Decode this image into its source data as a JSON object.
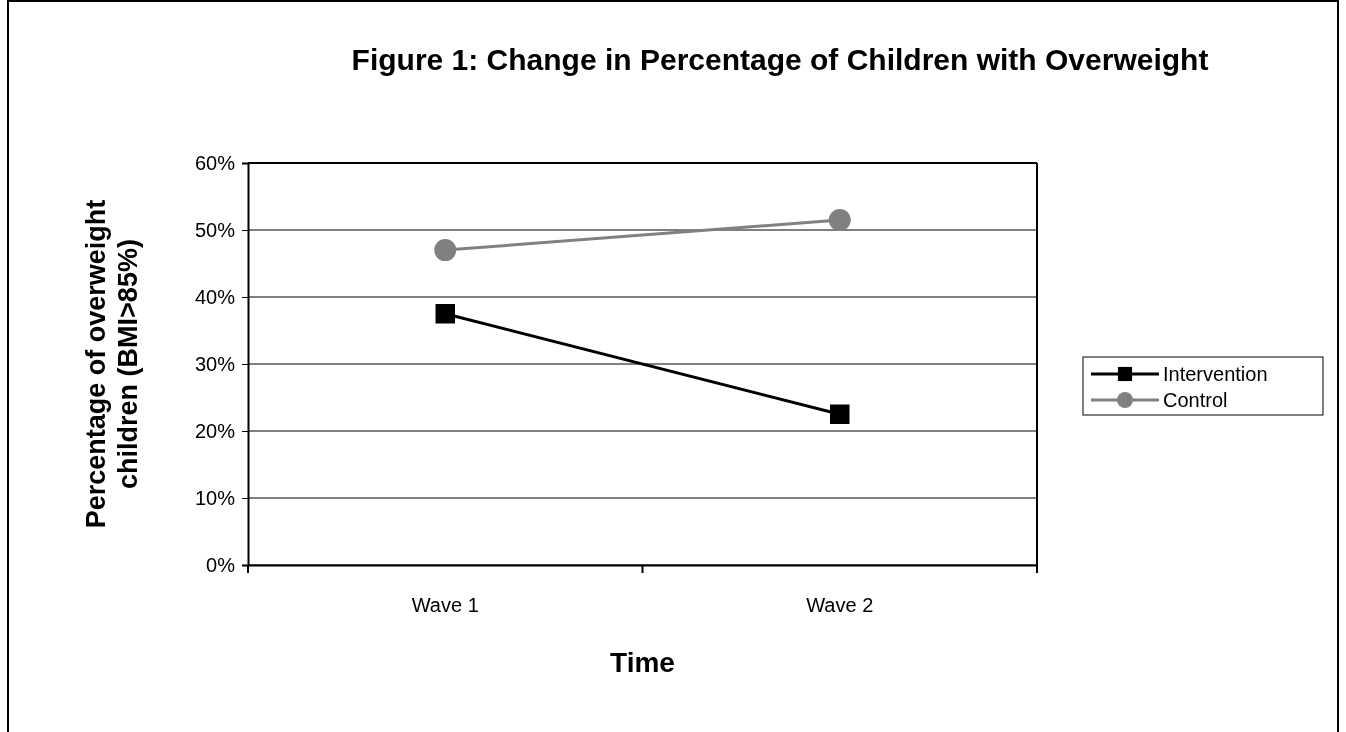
{
  "chart_data": {
    "type": "line",
    "title": "Figure 1:  Change in Percentage of Children with Overweight",
    "xlabel": "Time",
    "ylabel": "Percentage of overweight\nchildren (BMI>85%)",
    "categories": [
      "Wave 1",
      "Wave 2"
    ],
    "series": [
      {
        "name": "Intervention",
        "color": "#000000",
        "marker": "square",
        "values": [
          37.5,
          22.5
        ]
      },
      {
        "name": "Control",
        "color": "#808080",
        "marker": "circle",
        "values": [
          47,
          51.5
        ]
      }
    ],
    "ylim": [
      0,
      60
    ],
    "yticks": [
      {
        "value": 0,
        "label": "0%"
      },
      {
        "value": 10,
        "label": "10%"
      },
      {
        "value": 20,
        "label": "20%"
      },
      {
        "value": 30,
        "label": "30%"
      },
      {
        "value": 40,
        "label": "40%"
      },
      {
        "value": 50,
        "label": "50%"
      },
      {
        "value": 60,
        "label": "60%"
      }
    ],
    "grid": "y",
    "legend": "right",
    "line_style": "solid"
  }
}
